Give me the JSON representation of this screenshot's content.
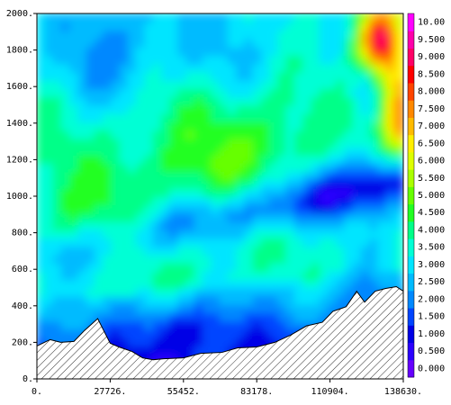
{
  "chart_data": {
    "type": "heatmap",
    "subtype": "filled-contour",
    "title": "",
    "xlabel": "",
    "ylabel": "",
    "xlim": [
      0,
      138630
    ],
    "ylim": [
      0,
      2000
    ],
    "x_ticks": [
      "0.",
      "27726.",
      "55452.",
      "83178.",
      "110904.",
      "138630."
    ],
    "y_ticks": [
      "0.",
      "200.",
      "400.",
      "600.",
      "800.",
      "1000.",
      "1200.",
      "1400.",
      "1600.",
      "1800.",
      "2000."
    ],
    "grid": false,
    "colorbar": {
      "placement": "right",
      "levels": [
        "0.000",
        "0.500",
        "1.000",
        "1.500",
        "2.000",
        "2.500",
        "3.000",
        "3.500",
        "4.000",
        "4.500",
        "5.000",
        "5.500",
        "6.000",
        "6.500",
        "7.000",
        "7.500",
        "8.000",
        "8.500",
        "9.000",
        "9.500",
        "10.00"
      ],
      "colors": [
        "#6600ff",
        "#2b00ff",
        "#0000e6",
        "#0044ff",
        "#0088ff",
        "#00bbff",
        "#00e5ff",
        "#00ffd5",
        "#00ff88",
        "#22ff22",
        "#66ff00",
        "#aaff00",
        "#ddff00",
        "#ffee00",
        "#ffbb00",
        "#ff8800",
        "#ff4400",
        "#ff0000",
        "#ff0066",
        "#ff00aa",
        "#ff00ff"
      ]
    },
    "terrain": {
      "x": [
        0,
        5000,
        9000,
        14000,
        18000,
        23000,
        27726,
        31000,
        36000,
        40000,
        44000,
        48000,
        55452,
        62000,
        70000,
        76000,
        83178,
        90000,
        96000,
        102000,
        108000,
        112000,
        117000,
        121000,
        124000,
        128000,
        132000,
        136000,
        138630
      ],
      "y": [
        180,
        215,
        200,
        205,
        265,
        330,
        195,
        175,
        150,
        115,
        105,
        110,
        115,
        140,
        145,
        170,
        175,
        200,
        240,
        290,
        310,
        370,
        395,
        480,
        420,
        480,
        495,
        505,
        480
      ]
    },
    "grid_x": [
      0,
      13863,
      27726,
      41589,
      55452,
      69315,
      83178,
      97041,
      110904,
      124767,
      138630
    ],
    "grid_y": [
      0,
      100,
      200,
      300,
      400,
      500,
      600,
      700,
      800,
      900,
      1000,
      1100,
      1200,
      1300,
      1400,
      1500,
      1600,
      1700,
      1800,
      1900,
      2000
    ]
  }
}
